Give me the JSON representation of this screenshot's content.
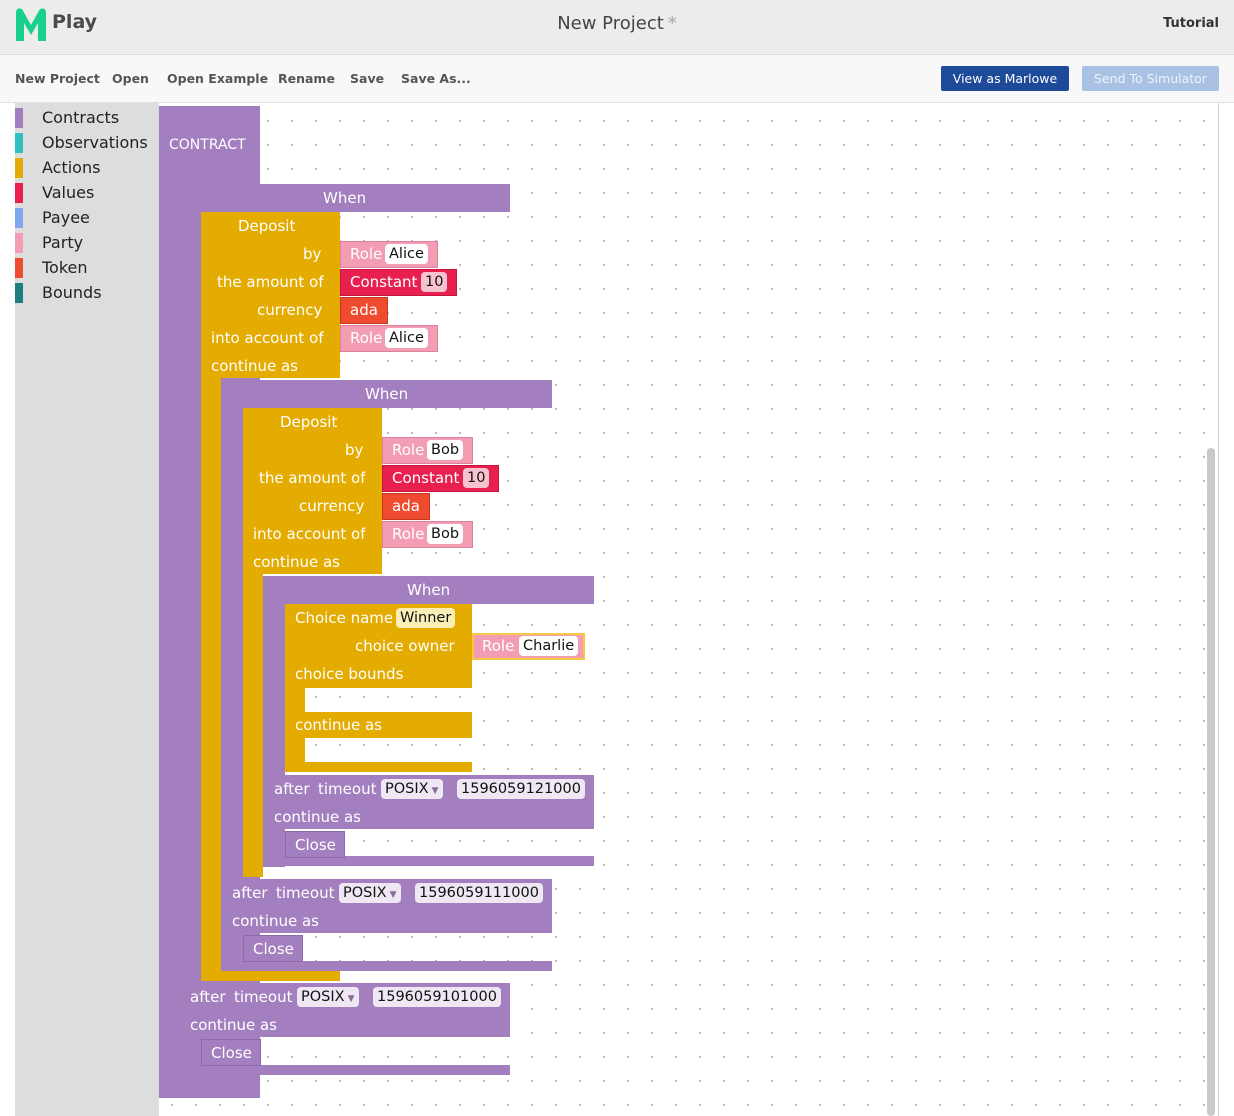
{
  "header": {
    "logo_text": "Play",
    "project_title": "New Project",
    "dirty_marker": "*",
    "tutorial_label": "Tutorial"
  },
  "toolbar": {
    "new_project": "New Project",
    "open": "Open",
    "open_example": "Open Example",
    "rename": "Rename",
    "save": "Save",
    "save_as": "Save As...",
    "view_as_marlowe": "View as Marlowe",
    "send_to_simulator": "Send To Simulator"
  },
  "toolbox": {
    "items": [
      {
        "label": "Contracts",
        "color": "#a47fbf"
      },
      {
        "label": "Observations",
        "color": "#2fbfbf"
      },
      {
        "label": "Actions",
        "color": "#e4ac00"
      },
      {
        "label": "Values",
        "color": "#e7204f"
      },
      {
        "label": "Payee",
        "color": "#7fa6ee"
      },
      {
        "label": "Party",
        "color": "#f39db4"
      },
      {
        "label": "Token",
        "color": "#ef4b2f"
      },
      {
        "label": "Bounds",
        "color": "#1f7f7f"
      }
    ]
  },
  "workspace": {
    "contract_label": "CONTRACT",
    "when_label": "When",
    "deposit_label": "Deposit",
    "by_label": "by",
    "amount_label": "the amount of",
    "currency_label": "currency",
    "into_account_label": "into account of",
    "continue_as_label": "continue as",
    "role_label": "Role",
    "constant_label": "Constant",
    "ada_label": "ada",
    "close_label": "Close",
    "after_label": "after",
    "timeout_label": "timeout",
    "posix_label": "POSIX",
    "choice_name_label": "Choice name",
    "choice_owner_label": "choice owner",
    "choice_bounds_label": "choice bounds",
    "deposit1": {
      "by": "Alice",
      "amount": "10",
      "into": "Alice"
    },
    "deposit2": {
      "by": "Bob",
      "amount": "10",
      "into": "Bob"
    },
    "choice": {
      "name": "Winner",
      "owner": "Charlie"
    },
    "timeout_inner": "1596059121000",
    "timeout_middle": "1596059111000",
    "timeout_outer": "1596059101000"
  },
  "colors": {
    "contracts": "#a47fbf",
    "actions": "#e4ac00",
    "values": "#e7204f",
    "party": "#f39db4",
    "token": "#ef4b2f",
    "primary_button": "#1e4a9a",
    "brand": "#19d08d"
  }
}
